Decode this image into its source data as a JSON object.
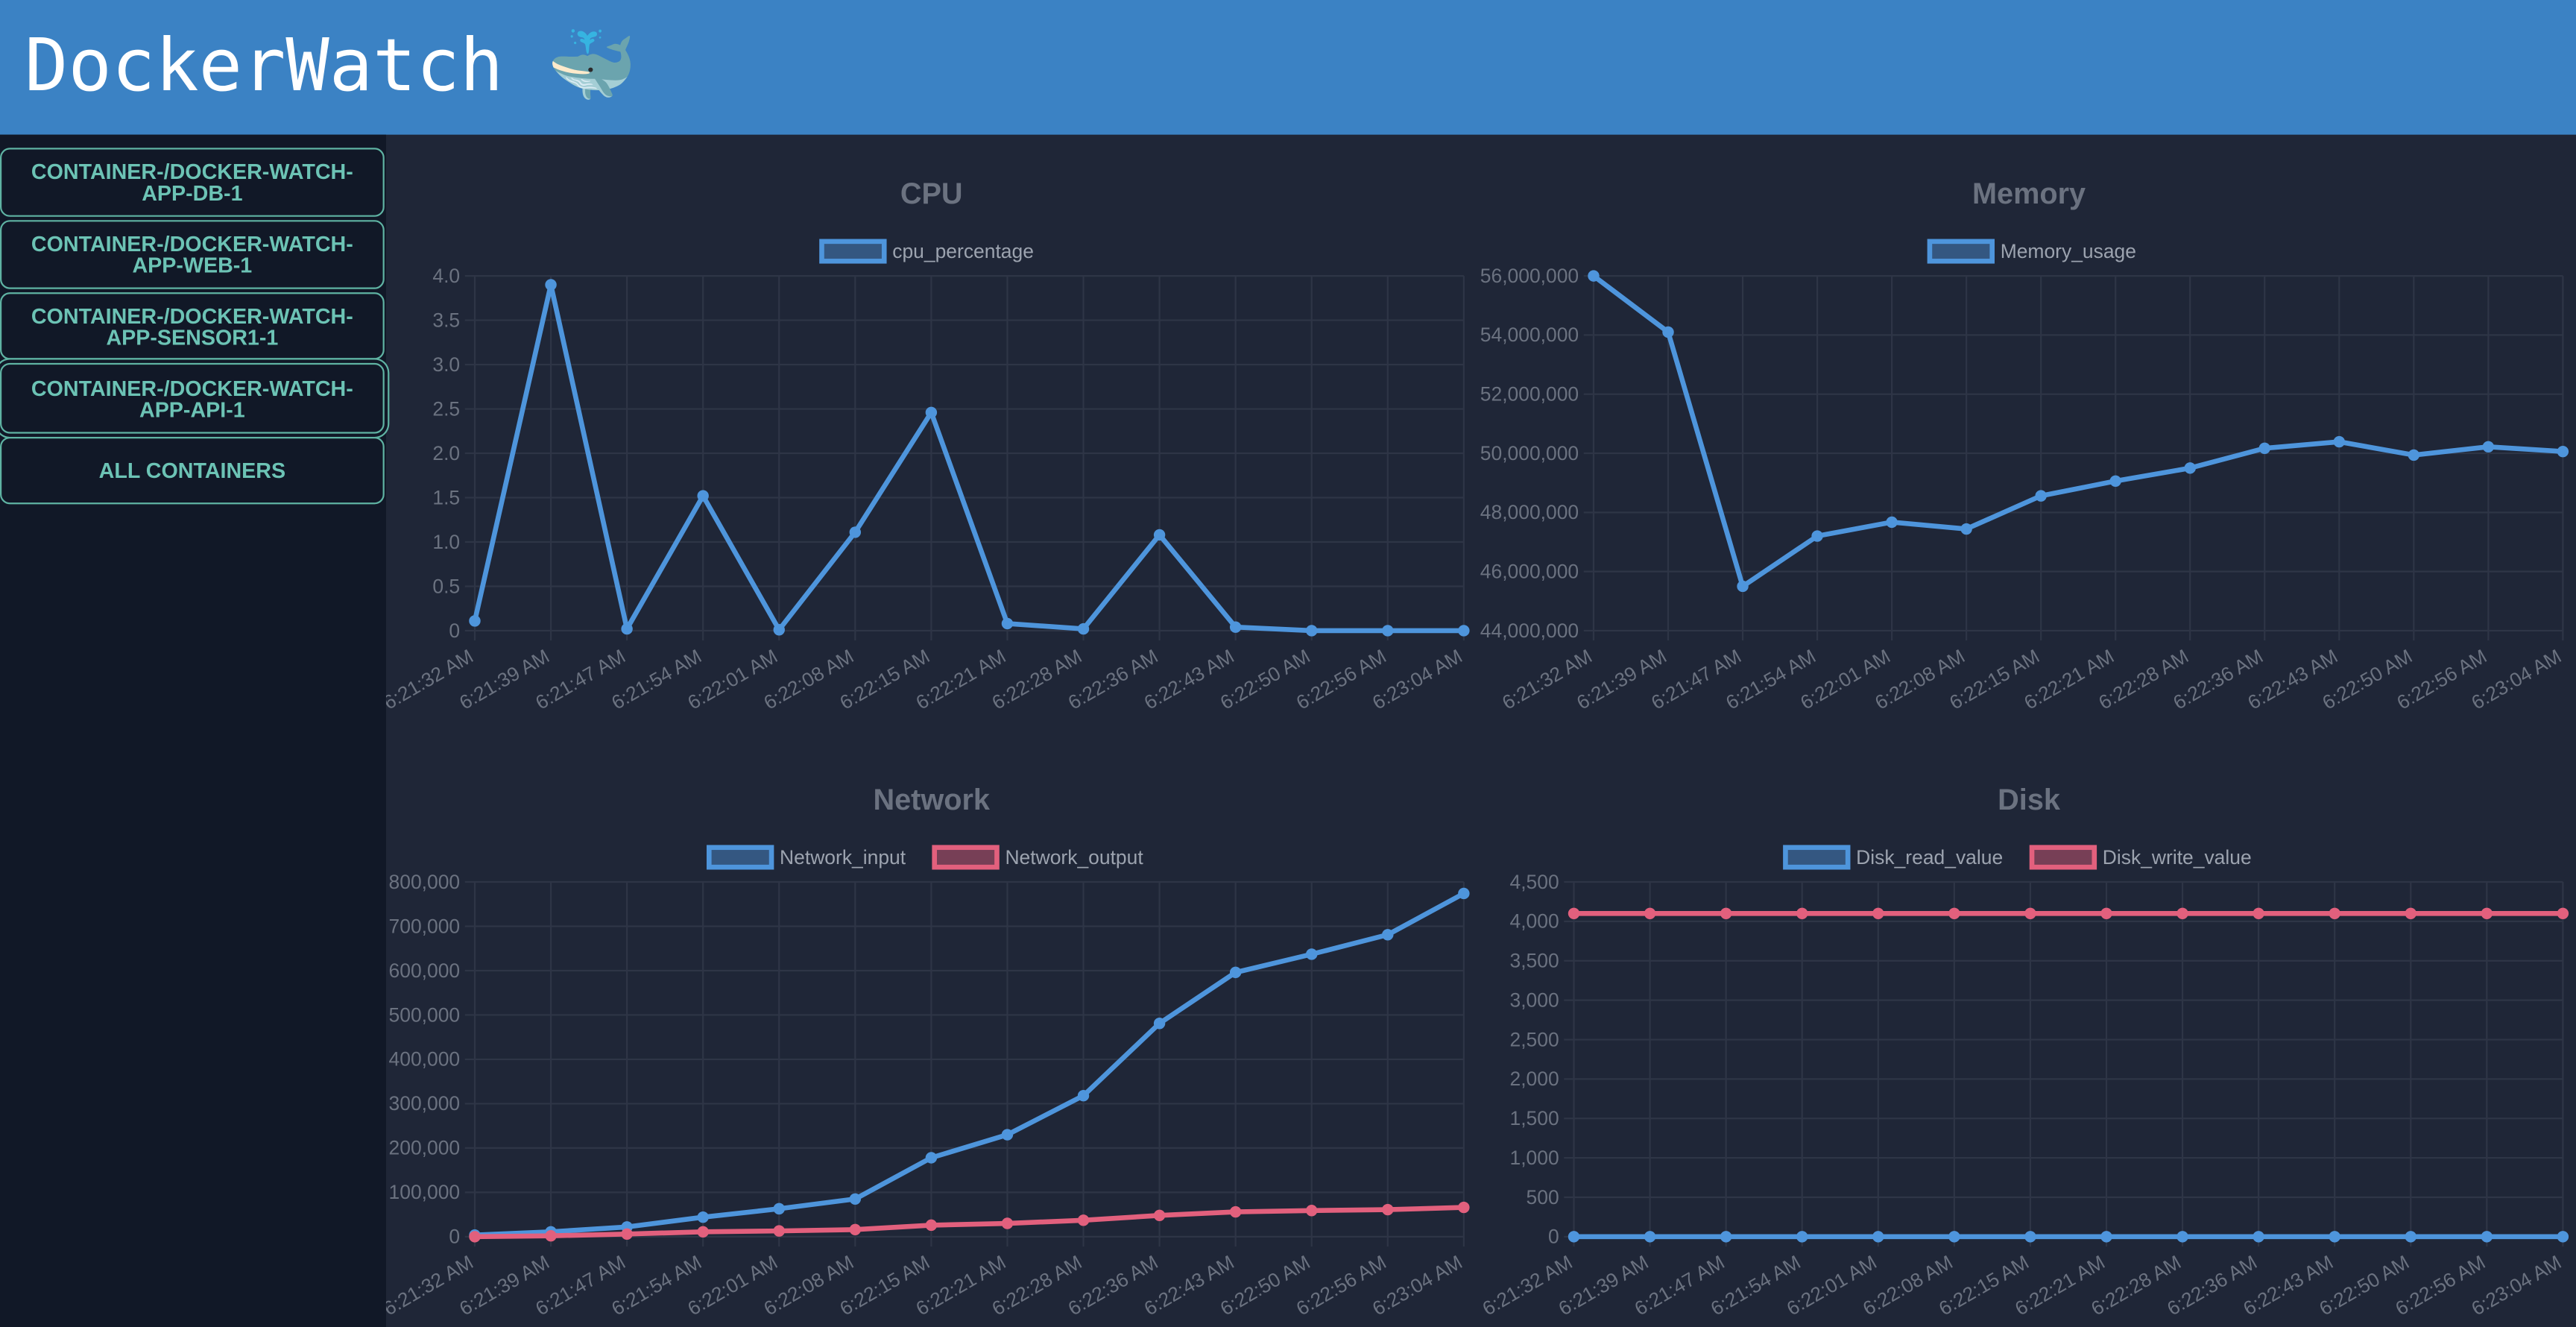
{
  "header": {
    "title": "DockerWatch 🐳"
  },
  "sidebar": {
    "buttons": [
      "CONTAINER-/DOCKER-WATCH-APP-DB-1",
      "CONTAINER-/DOCKER-WATCH-APP-WEB-1",
      "CONTAINER-/DOCKER-WATCH-APP-SENSOR1-1",
      "CONTAINER-/DOCKER-WATCH-APP-API-1",
      "ALL CONTAINERS"
    ]
  },
  "chart_data": [
    {
      "type": "line",
      "title": "CPU",
      "categories": [
        "6:21:32 AM",
        "6:21:39 AM",
        "6:21:47 AM",
        "6:21:54 AM",
        "6:22:01 AM",
        "6:22:08 AM",
        "6:22:15 AM",
        "6:22:21 AM",
        "6:22:28 AM",
        "6:22:36 AM",
        "6:22:43 AM",
        "6:22:50 AM",
        "6:22:56 AM",
        "6:23:04 AM"
      ],
      "series": [
        {
          "name": "cpu_percentage",
          "color": "#4e95dc",
          "values": [
            0.11,
            3.9,
            0.02,
            1.52,
            0.01,
            1.11,
            2.46,
            0.08,
            0.02,
            1.08,
            0.04,
            0,
            0,
            0
          ]
        }
      ],
      "ylim": [
        0,
        4
      ],
      "yticks": [
        0,
        0.5,
        {
          "value": 1,
          "label": "1.0"
        },
        1.5,
        {
          "value": 2,
          "label": "2.0"
        },
        2.5,
        {
          "value": 3,
          "label": "3.0"
        },
        3.5,
        {
          "value": 4,
          "label": "4.0"
        }
      ],
      "grid": true
    },
    {
      "type": "line",
      "title": "Memory",
      "categories": [
        "6:21:32 AM",
        "6:21:39 AM",
        "6:21:47 AM",
        "6:21:54 AM",
        "6:22:01 AM",
        "6:22:08 AM",
        "6:22:15 AM",
        "6:22:21 AM",
        "6:22:28 AM",
        "6:22:36 AM",
        "6:22:43 AM",
        "6:22:50 AM",
        "6:22:56 AM",
        "6:23:04 AM"
      ],
      "series": [
        {
          "name": "Memory_usage",
          "color": "#4e95dc",
          "values": [
            56000000,
            54100000,
            45500000,
            47200000,
            47670000,
            47440000,
            48560000,
            49060000,
            49500000,
            50170000,
            50390000,
            49940000,
            50220000,
            50060000
          ]
        }
      ],
      "ylim": [
        44000000,
        56000000
      ],
      "yticks": [
        {
          "value": 44000000,
          "label": "44,000,000"
        },
        {
          "value": 46000000,
          "label": "46,000,000"
        },
        {
          "value": 48000000,
          "label": "48,000,000"
        },
        {
          "value": 50000000,
          "label": "50,000,000"
        },
        {
          "value": 52000000,
          "label": "52,000,000"
        },
        {
          "value": 54000000,
          "label": "54,000,000"
        },
        {
          "value": 56000000,
          "label": "56,000,000"
        }
      ],
      "grid": true
    },
    {
      "type": "line",
      "title": "Network",
      "categories": [
        "6:21:32 AM",
        "6:21:39 AM",
        "6:21:47 AM",
        "6:21:54 AM",
        "6:22:01 AM",
        "6:22:08 AM",
        "6:22:15 AM",
        "6:22:21 AM",
        "6:22:28 AM",
        "6:22:36 AM",
        "6:22:43 AM",
        "6:22:50 AM",
        "6:22:56 AM",
        "6:23:04 AM"
      ],
      "series": [
        {
          "name": "Network_input",
          "color": "#4e95dc",
          "values": [
            3700,
            11000,
            22000,
            44000,
            63000,
            85000,
            178000,
            230000,
            318000,
            481000,
            596000,
            637000,
            681000,
            774000
          ]
        },
        {
          "name": "Network_output",
          "color": "#e2607d",
          "values": [
            0,
            2000,
            6000,
            11000,
            13000,
            16000,
            26000,
            30000,
            37000,
            48000,
            56000,
            59000,
            61000,
            66000
          ]
        }
      ],
      "ylim": [
        0,
        800000
      ],
      "yticks": [
        0,
        {
          "value": 100000,
          "label": "100,000"
        },
        {
          "value": 200000,
          "label": "200,000"
        },
        {
          "value": 300000,
          "label": "300,000"
        },
        {
          "value": 400000,
          "label": "400,000"
        },
        {
          "value": 500000,
          "label": "500,000"
        },
        {
          "value": 600000,
          "label": "600,000"
        },
        {
          "value": 700000,
          "label": "700,000"
        },
        {
          "value": 800000,
          "label": "800,000"
        }
      ],
      "grid": true
    },
    {
      "type": "line",
      "title": "Disk",
      "categories": [
        "6:21:32 AM",
        "6:21:39 AM",
        "6:21:47 AM",
        "6:21:54 AM",
        "6:22:01 AM",
        "6:22:08 AM",
        "6:22:15 AM",
        "6:22:21 AM",
        "6:22:28 AM",
        "6:22:36 AM",
        "6:22:43 AM",
        "6:22:50 AM",
        "6:22:56 AM",
        "6:23:04 AM"
      ],
      "series": [
        {
          "name": "Disk_read_value",
          "color": "#4e95dc",
          "values": [
            0,
            0,
            0,
            0,
            0,
            0,
            0,
            0,
            0,
            0,
            0,
            0,
            0,
            0
          ]
        },
        {
          "name": "Disk_write_value",
          "color": "#e2607d",
          "values": [
            4100,
            4100,
            4100,
            4100,
            4100,
            4100,
            4100,
            4100,
            4100,
            4100,
            4100,
            4100,
            4100,
            4100
          ]
        }
      ],
      "ylim": [
        0,
        4500
      ],
      "yticks": [
        0,
        500,
        {
          "value": 1000,
          "label": "1,000"
        },
        {
          "value": 1500,
          "label": "1,500"
        },
        {
          "value": 2000,
          "label": "2,000"
        },
        {
          "value": 2500,
          "label": "2,500"
        },
        {
          "value": 3000,
          "label": "3,000"
        },
        {
          "value": 3500,
          "label": "3,500"
        },
        {
          "value": 4000,
          "label": "4,000"
        },
        {
          "value": 4500,
          "label": "4,500"
        }
      ],
      "grid": true
    }
  ]
}
